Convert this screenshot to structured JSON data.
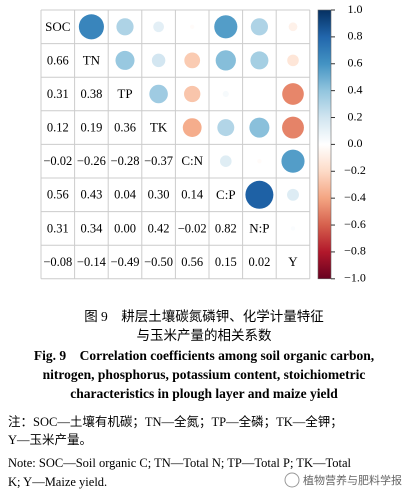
{
  "chart_data": {
    "type": "corrplot",
    "variables": [
      "SOC",
      "TN",
      "TP",
      "TK",
      "C:N",
      "C:P",
      "N:P",
      "Y"
    ],
    "values": [
      [
        0.66
      ],
      [
        0.31,
        0.38
      ],
      [
        0.12,
        0.19,
        0.36
      ],
      [
        -0.02,
        -0.26,
        -0.28,
        -0.37
      ],
      [
        0.56,
        0.43,
        0.04,
        0.3,
        0.14
      ],
      [
        0.31,
        0.34,
        0.0,
        0.42,
        -0.02,
        0.82
      ],
      [
        -0.08,
        -0.14,
        -0.49,
        -0.5,
        0.56,
        0.15,
        0.02
      ]
    ],
    "value_labels": [
      [
        "0.66"
      ],
      [
        "0.31",
        "0.38"
      ],
      [
        "0.12",
        "0.19",
        "0.36"
      ],
      [
        "−0.02",
        "−0.26",
        "−0.28",
        "−0.37"
      ],
      [
        "0.56",
        "0.43",
        "0.04",
        "0.30",
        "0.14"
      ],
      [
        "0.31",
        "0.34",
        "0.00",
        "0.42",
        "−0.02",
        "0.82"
      ],
      [
        "−0.08",
        "−0.14",
        "−0.49",
        "−0.50",
        "0.56",
        "0.15",
        "0.02"
      ]
    ],
    "colors": [
      "#67001F",
      "#B2182B",
      "#D6604D",
      "#F4A582",
      "#FDDBC7",
      "#FFFFFF",
      "#D1E5F0",
      "#92C5DE",
      "#4393C3",
      "#2166AC",
      "#053061"
    ],
    "ylim": [
      -1,
      1
    ],
    "yticks": [
      {
        "value": 1,
        "label": "1.0"
      },
      {
        "value": 0.8,
        "label": "0.8"
      },
      {
        "value": 0.6,
        "label": "0.6"
      },
      {
        "value": 0.4,
        "label": "0.4"
      },
      {
        "value": 0.2,
        "label": "0.2"
      },
      {
        "value": 0,
        "label": "0.0"
      },
      {
        "value": -0.2,
        "label": "−0.2"
      },
      {
        "value": -0.4,
        "label": "−0.4"
      },
      {
        "value": -0.6,
        "label": "−0.6"
      },
      {
        "value": -0.8,
        "label": "−0.8"
      },
      {
        "value": -1,
        "label": "−1.0"
      }
    ]
  },
  "caption": {
    "cn": [
      "图 9　耕层土壤碳氮磷钾、化学计量特征",
      "与玉米产量的相关系数"
    ],
    "en": [
      "Fig. 9　Correlation coefficients among soil organic carbon,",
      "nitrogen, phosphorus, potassium content, stoichiometric",
      "characteristics in plough layer and maize yield"
    ]
  },
  "note": [
    "注：SOC—土壤有机碳；TN—全氮；TP—全磷；TK—全钾；",
    "Y—玉米产量。",
    "Note: SOC—Soil organic C; TN—Total N; TP—Total P; TK—Total",
    "K; Y—Maize yield."
  ],
  "watermark": "植物营养与肥料学报"
}
